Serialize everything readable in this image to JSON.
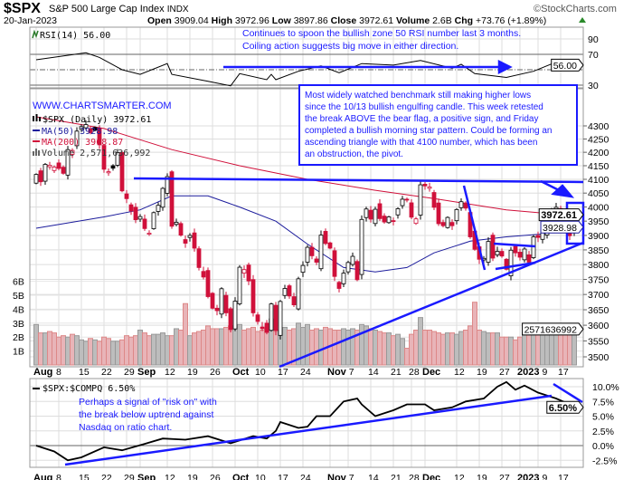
{
  "header": {
    "symbol": "$SPX",
    "name": "S&P 500 Large Cap Index",
    "exchange": "INDX",
    "date": "20-Jan-2023",
    "open_label": "Open",
    "open": "3909.04",
    "high_label": "High",
    "high": "3972.96",
    "low_label": "Low",
    "low": "3897.86",
    "close_label": "Close",
    "close": "3972.61",
    "volume_label": "Volume",
    "volume": "2.6B",
    "chg_label": "Chg",
    "chg": "+73.76 (+1.89%)",
    "brand": "©StockCharts.com"
  },
  "colors": {
    "up": "#000000",
    "down": "#d0103a",
    "ma50": "#1c1c9c",
    "ma200": "#d0103a",
    "annotation": "#1a1aff",
    "vol_up": "#bdbdbd",
    "vol_down": "#e8b4b8"
  },
  "icons": {
    "rsi": "rsi-icon",
    "price": "candlestick-icon",
    "volume": "volume-bars-icon",
    "up": "triangle-up-icon"
  },
  "chart_data": [
    {
      "type": "candlestick",
      "panel": "price",
      "y_scale": "log",
      "ylim": [
        3475,
        4320
      ],
      "yticks": [
        3500,
        3550,
        3600,
        3650,
        3700,
        3750,
        3800,
        3850,
        3900,
        3950,
        4000,
        4050,
        4100,
        4150,
        4200,
        4250,
        4300
      ],
      "legend": {
        "price": "$SPX (Daily) 3972.61",
        "ma50": "MA(50) 3928.98",
        "ma200": "MA(200) 3968.87",
        "volume": "Volume 2,571,636,992"
      },
      "last_labels": {
        "close": "3972.61",
        "ma50": "3928.98",
        "volume": "2571636992"
      },
      "last_bar": {
        "open": 3909.04,
        "high": 3972.96,
        "low": 3897.86,
        "close": 3972.61
      },
      "months": [
        {
          "month": "2022-08",
          "days": [
            1,
            2,
            3,
            4,
            5,
            8,
            9,
            10,
            11,
            12,
            15,
            16,
            17,
            18,
            19,
            22,
            23,
            24,
            25,
            26,
            29,
            30,
            31
          ],
          "close": [
            4118,
            4091,
            4155,
            4152,
            4145,
            4140,
            4122,
            4210,
            4207,
            4280,
            4297,
            4305,
            4274,
            4283,
            4228,
            4137,
            4128,
            4141,
            4199,
            4058,
            4030,
            3986,
            3955
          ],
          "volume_b": [
            2.9,
            2.3,
            2.3,
            2.4,
            2.3,
            2.0,
            2.1,
            2.0,
            2.2,
            2.1,
            1.8,
            1.7,
            1.9,
            1.8,
            1.7,
            2.0,
            1.9,
            1.7,
            1.7,
            1.8,
            2.1,
            2.0,
            2.1
          ]
        },
        {
          "month": "2022-09",
          "days": [
            1,
            2,
            6,
            7,
            8,
            9,
            12,
            13,
            14,
            15,
            16,
            19,
            20,
            21,
            22,
            23,
            26,
            27,
            28,
            29,
            30
          ],
          "close": [
            3966,
            3924,
            3908,
            3980,
            4006,
            4067,
            4110,
            3932,
            3946,
            3901,
            3873,
            3900,
            3856,
            3790,
            3758,
            3693,
            3655,
            3647,
            3719,
            3640,
            3586
          ],
          "volume_b": [
            2.5,
            2.3,
            2.1,
            2.2,
            2.2,
            2.3,
            2.1,
            2.1,
            2.6,
            2.5,
            4.4,
            2.1,
            2.3,
            2.4,
            2.5,
            2.8,
            2.6,
            2.6,
            2.6,
            2.7,
            2.8
          ]
        },
        {
          "month": "2022-10",
          "days": [
            3,
            4,
            5,
            6,
            7,
            10,
            11,
            12,
            13,
            14,
            17,
            18,
            19,
            20,
            21,
            24,
            25,
            26,
            27,
            28,
            31
          ],
          "close": [
            3678,
            3791,
            3783,
            3745,
            3640,
            3612,
            3589,
            3577,
            3669,
            3583,
            3677,
            3720,
            3695,
            3666,
            3752,
            3797,
            3859,
            3830,
            3808,
            3901,
            3872
          ],
          "volume_b": [
            2.8,
            2.9,
            2.5,
            2.6,
            2.7,
            2.4,
            2.5,
            2.6,
            3.3,
            2.4,
            2.5,
            2.7,
            2.5,
            2.6,
            3.0,
            2.7,
            2.9,
            2.5,
            2.6,
            2.5,
            2.7
          ]
        },
        {
          "month": "2022-11",
          "days": [
            1,
            2,
            3,
            4,
            7,
            8,
            9,
            10,
            11,
            14,
            15,
            16,
            17,
            18,
            21,
            22,
            23,
            25,
            28,
            29,
            30
          ],
          "close": [
            3856,
            3760,
            3720,
            3771,
            3807,
            3828,
            3749,
            3956,
            3993,
            3957,
            3992,
            3959,
            3947,
            3965,
            3950,
            3994,
            4028,
            4026,
            3964,
            3958,
            4080
          ],
          "volume_b": [
            2.6,
            2.5,
            2.5,
            2.6,
            2.5,
            2.6,
            2.5,
            2.9,
            2.8,
            2.6,
            2.5,
            2.4,
            2.3,
            2.3,
            2.1,
            2.2,
            1.9,
            1.2,
            2.2,
            2.5,
            3.4
          ]
        },
        {
          "month": "2022-12",
          "days": [
            1,
            2,
            5,
            6,
            7,
            8,
            9,
            12,
            13,
            14,
            15,
            16,
            19,
            20,
            21,
            22,
            23,
            27,
            28,
            29,
            30
          ],
          "close": [
            4076,
            4072,
            3999,
            3941,
            3934,
            3963,
            3934,
            3991,
            4019,
            3996,
            3895,
            3852,
            3818,
            3821,
            3879,
            3822,
            3845,
            3829,
            3784,
            3849,
            3840
          ],
          "volume_b": [
            2.5,
            2.5,
            2.4,
            2.3,
            2.2,
            2.3,
            2.3,
            2.2,
            2.4,
            2.5,
            2.8,
            4.5,
            2.5,
            2.4,
            2.3,
            2.3,
            2.3,
            2.0,
            2.0,
            2.0,
            1.8
          ]
        },
        {
          "month": "2023-01",
          "days": [
            3,
            4,
            5,
            6,
            9,
            10,
            11,
            12,
            13,
            17,
            18,
            19,
            20
          ],
          "close": [
            3825,
            3853,
            3808,
            3895,
            3893,
            3919,
            3970,
            3983,
            3999,
            3991,
            3929,
            3899,
            3972.61
          ],
          "volume_b": [
            2.0,
            2.3,
            2.3,
            2.5,
            2.4,
            2.3,
            2.2,
            2.3,
            2.4,
            2.5,
            2.6,
            2.5,
            2.57
          ]
        }
      ],
      "ma50": [
        [
          "2022-08-01",
          3925
        ],
        [
          "2022-08-22",
          3965
        ],
        [
          "2022-09-01",
          3990
        ],
        [
          "2022-09-13",
          4040
        ],
        [
          "2022-09-23",
          4040
        ],
        [
          "2022-10-04",
          4000
        ],
        [
          "2022-10-14",
          3950
        ],
        [
          "2022-10-25",
          3870
        ],
        [
          "2022-11-04",
          3790
        ],
        [
          "2022-11-15",
          3775
        ],
        [
          "2022-11-25",
          3790
        ],
        [
          "2022-12-05",
          3840
        ],
        [
          "2022-12-15",
          3880
        ],
        [
          "2022-12-28",
          3895
        ],
        [
          "2023-01-10",
          3905
        ],
        [
          "2023-01-20",
          3928.98
        ]
      ],
      "ma200": [
        [
          "2022-08-01",
          4335
        ],
        [
          "2022-08-22",
          4290
        ],
        [
          "2022-09-13",
          4210
        ],
        [
          "2022-10-04",
          4150
        ],
        [
          "2022-10-25",
          4100
        ],
        [
          "2022-11-15",
          4060
        ],
        [
          "2022-12-05",
          4030
        ],
        [
          "2022-12-28",
          3990
        ],
        [
          "2023-01-20",
          3968.87
        ]
      ],
      "volume_axis": {
        "ticks": [
          "1B",
          "2B",
          "3B",
          "4B",
          "5B",
          "6B"
        ],
        "unit": "B"
      }
    },
    {
      "type": "line",
      "panel": "rsi",
      "title": "RSI(14) 56.00",
      "ylim": [
        20,
        100
      ],
      "yticks": [
        30,
        70,
        90
      ],
      "reference_lines": [
        30,
        50,
        70
      ],
      "last_label": "56.00",
      "points": [
        [
          "2022-08-01",
          63
        ],
        [
          "2022-08-16",
          72
        ],
        [
          "2022-08-19",
          66
        ],
        [
          "2022-08-26",
          50
        ],
        [
          "2022-09-01",
          44
        ],
        [
          "2022-09-12",
          58
        ],
        [
          "2022-09-13",
          44
        ],
        [
          "2022-09-23",
          35
        ],
        [
          "2022-09-30",
          29
        ],
        [
          "2022-10-04",
          45
        ],
        [
          "2022-10-12",
          37
        ],
        [
          "2022-10-13",
          44
        ],
        [
          "2022-10-14",
          37
        ],
        [
          "2022-10-21",
          48
        ],
        [
          "2022-10-28",
          55
        ],
        [
          "2022-11-03",
          46
        ],
        [
          "2022-11-10",
          58
        ],
        [
          "2022-11-21",
          56
        ],
        [
          "2022-11-30",
          62
        ],
        [
          "2022-12-09",
          52
        ],
        [
          "2022-12-13",
          57
        ],
        [
          "2022-12-16",
          45
        ],
        [
          "2022-12-28",
          40
        ],
        [
          "2023-01-06",
          48
        ],
        [
          "2023-01-13",
          60
        ],
        [
          "2023-01-19",
          51
        ],
        [
          "2023-01-20",
          56
        ]
      ]
    },
    {
      "type": "line",
      "panel": "ratio",
      "title": "$SPX:$COMPQ 6.50%",
      "ylim": [
        -3.8,
        11.5
      ],
      "yticks": [
        "-2.5%",
        "0.0%",
        "2.5%",
        "5.0%",
        "7.5%",
        "10.0%"
      ],
      "ytick_values": [
        -2.5,
        0,
        2.5,
        5,
        7.5,
        10
      ],
      "reference_lines": [
        0
      ],
      "last_label": "6.50%",
      "points": [
        [
          "2022-08-01",
          0
        ],
        [
          "2022-08-05",
          -1.0
        ],
        [
          "2022-08-10",
          -2.5
        ],
        [
          "2022-08-15",
          -2.0
        ],
        [
          "2022-08-22",
          -0.3
        ],
        [
          "2022-08-26",
          -0.8
        ],
        [
          "2022-09-02",
          0.3
        ],
        [
          "2022-09-09",
          1.2
        ],
        [
          "2022-09-16",
          1.0
        ],
        [
          "2022-09-23",
          1.6
        ],
        [
          "2022-09-30",
          0.4
        ],
        [
          "2022-10-07",
          1.6
        ],
        [
          "2022-10-12",
          1.2
        ],
        [
          "2022-10-14",
          2.5
        ],
        [
          "2022-10-17",
          4.0
        ],
        [
          "2022-10-21",
          3.0
        ],
        [
          "2022-10-25",
          3.2
        ],
        [
          "2022-10-27",
          5.0
        ],
        [
          "2022-11-01",
          5.0
        ],
        [
          "2022-11-04",
          7.5
        ],
        [
          "2022-11-09",
          8.0
        ],
        [
          "2022-11-10",
          7.0
        ],
        [
          "2022-11-15",
          5.0
        ],
        [
          "2022-11-21",
          6.0
        ],
        [
          "2022-11-25",
          7.0
        ],
        [
          "2022-12-01",
          7.0
        ],
        [
          "2022-12-05",
          6.0
        ],
        [
          "2022-12-09",
          6.5
        ],
        [
          "2022-12-14",
          7.5
        ],
        [
          "2022-12-20",
          8.0
        ],
        [
          "2022-12-23",
          10.0
        ],
        [
          "2022-12-28",
          10.8
        ],
        [
          "2022-12-30",
          9.5
        ],
        [
          "2023-01-04",
          10.2
        ],
        [
          "2023-01-09",
          9.0
        ],
        [
          "2023-01-13",
          8.0
        ],
        [
          "2023-01-19",
          7.0
        ],
        [
          "2023-01-20",
          6.5
        ]
      ]
    }
  ],
  "x_ticks": [
    {
      "label": "Aug",
      "date": "2022-08-01",
      "bold": true
    },
    {
      "label": "8",
      "date": "2022-08-08"
    },
    {
      "label": "15",
      "date": "2022-08-15"
    },
    {
      "label": "22",
      "date": "2022-08-22"
    },
    {
      "label": "29",
      "date": "2022-08-29"
    },
    {
      "label": "Sep",
      "date": "2022-09-01",
      "bold": true
    },
    {
      "label": "12",
      "date": "2022-09-12"
    },
    {
      "label": "19",
      "date": "2022-09-19"
    },
    {
      "label": "26",
      "date": "2022-09-26"
    },
    {
      "label": "Oct",
      "date": "2022-10-03",
      "bold": true
    },
    {
      "label": "10",
      "date": "2022-10-10"
    },
    {
      "label": "17",
      "date": "2022-10-17"
    },
    {
      "label": "24",
      "date": "2022-10-24"
    },
    {
      "label": "Nov",
      "date": "2022-11-01",
      "bold": true
    },
    {
      "label": "7",
      "date": "2022-11-07"
    },
    {
      "label": "14",
      "date": "2022-11-14"
    },
    {
      "label": "21",
      "date": "2022-11-21"
    },
    {
      "label": "28",
      "date": "2022-11-28"
    },
    {
      "label": "Dec",
      "date": "2022-12-01",
      "bold": true
    },
    {
      "label": "12",
      "date": "2022-12-12"
    },
    {
      "label": "19",
      "date": "2022-12-19"
    },
    {
      "label": "27",
      "date": "2022-12-27"
    },
    {
      "label": "2023",
      "date": "2023-01-03",
      "bold": true
    },
    {
      "label": "9",
      "date": "2023-01-09"
    },
    {
      "label": "17",
      "date": "2023-01-17"
    }
  ],
  "annotations": {
    "rsi_note": [
      "Continues to spoon the bullish zone 50 RSI number last 3 months.",
      "Coiling action suggests big move in either direction."
    ],
    "website": "WWW.CHARTSMARTER.COM",
    "main_note": [
      "Most widely watched benchmark still making higher lows",
      "since the 10/13 bullish engulfing candle. This week retested",
      "the break ABOVE the bear flag, a positive sign, and Friday",
      "completed a bullish morning star pattern. Could be forming an",
      "ascending triangle with that 4100 number, which has been",
      "an obstruction, the pivot."
    ],
    "ratio_note": [
      "Perhaps a signal of \"risk on\" with",
      "the break below uptrend against",
      "Nasdaq on ratio chart."
    ]
  }
}
